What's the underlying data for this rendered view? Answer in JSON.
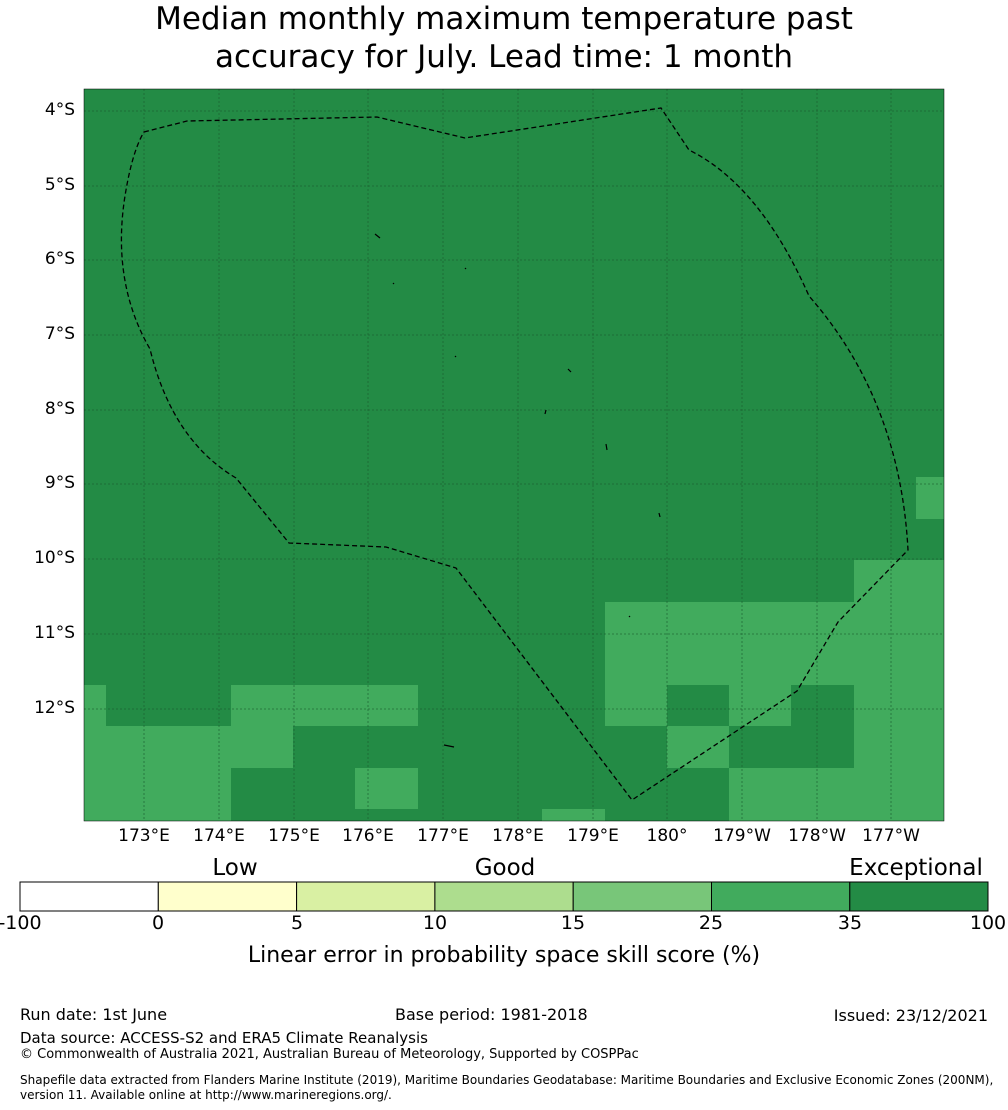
{
  "title_line1": "Median monthly maximum temperature past",
  "title_line2": "accuracy for July. Lead time: 1 month",
  "map": {
    "lat_labels": [
      "4°S",
      "5°S",
      "6°S",
      "7°S",
      "8°S",
      "9°S",
      "10°S",
      "11°S",
      "12°S"
    ],
    "lon_labels": [
      "173°E",
      "174°E",
      "175°E",
      "176°E",
      "177°E",
      "178°E",
      "179°E",
      "180°",
      "179°W",
      "178°W",
      "177°W"
    ],
    "colors": {
      "exceptional": "#238b45",
      "good_high": "#41ab5d",
      "gridline": "#1a5c2e",
      "boundary": "#000000"
    }
  },
  "colorbar": {
    "categories": [
      "Low",
      "Good",
      "Exceptional"
    ],
    "ticks": [
      "-100",
      "0",
      "5",
      "10",
      "15",
      "25",
      "35",
      "100"
    ],
    "colors": [
      "#ffffff",
      "#ffffcc",
      "#d9f0a3",
      "#addd8e",
      "#78c679",
      "#41ab5d",
      "#238b45"
    ],
    "label": "Linear error in probability space skill score (%)"
  },
  "footer": {
    "run_date": "Run date: 1st June",
    "base_period": "Base period: 1981-2018",
    "issued": "Issued: 23/12/2021",
    "data_source": "Data source: ACCESS-S2 and ERA5 Climate Reanalysis",
    "copyright": "© Commonwealth of Australia 2021, Australian Bureau of Meteorology, Supported by COSPPac",
    "shapefile_line1": "Shapefile data extracted from Flanders Marine Institute (2019), Maritime Boundaries Geodatabase: Maritime Boundaries and Exclusive Economic Zones (200NM),",
    "shapefile_line2": "version 11. Available online at http://www.marineregions.org/."
  }
}
